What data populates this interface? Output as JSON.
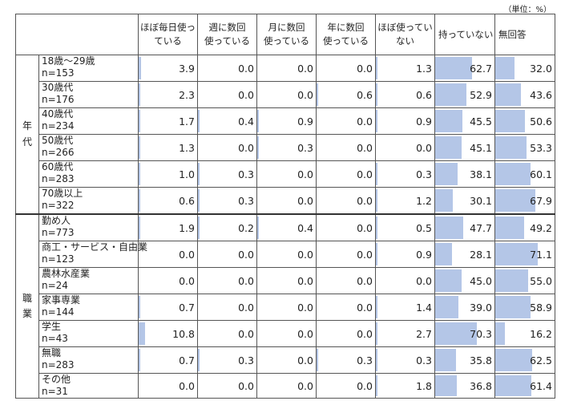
{
  "unit_label": "（単位：%）",
  "chart_data": {
    "type": "table",
    "columns": [
      "ほぼ毎日使っている",
      "週に数回使っている",
      "月に数回使っている",
      "年に数回使っている",
      "ほぼ使っていない",
      "持っていない",
      "無回答"
    ],
    "column_lines": [
      [
        "ほぼ毎日使っ",
        "ている"
      ],
      [
        "週に数回",
        "使っている"
      ],
      [
        "月に数回",
        "使っている"
      ],
      [
        "年に数回",
        "使っている"
      ],
      [
        "ほぼ使ってい",
        "ない"
      ],
      [
        "持っていない"
      ],
      [
        "無回答"
      ]
    ],
    "bar_max": 100,
    "groups": [
      {
        "label": "年代",
        "chars": [
          "年",
          "代"
        ],
        "rows": [
          {
            "label": "18歳～29歳",
            "n": "n=153",
            "values": [
              3.9,
              0.0,
              0.0,
              0.0,
              1.3,
              62.7,
              32.0
            ]
          },
          {
            "label": "30歳代",
            "n": "n=176",
            "values": [
              2.3,
              0.0,
              0.0,
              0.6,
              0.6,
              52.9,
              43.6
            ]
          },
          {
            "label": "40歳代",
            "n": "n=234",
            "values": [
              1.7,
              0.4,
              0.9,
              0.0,
              0.9,
              45.5,
              50.6
            ]
          },
          {
            "label": "50歳代",
            "n": "n=266",
            "values": [
              1.3,
              0.0,
              0.3,
              0.0,
              0.0,
              45.1,
              53.3
            ]
          },
          {
            "label": "60歳代",
            "n": "n=283",
            "values": [
              1.0,
              0.3,
              0.0,
              0.0,
              0.3,
              38.1,
              60.1
            ]
          },
          {
            "label": "70歳以上",
            "n": "n=322",
            "values": [
              0.6,
              0.3,
              0.0,
              0.0,
              1.2,
              30.1,
              67.9
            ]
          }
        ]
      },
      {
        "label": "職業",
        "chars": [
          "職",
          "業"
        ],
        "rows": [
          {
            "label": "勤め人",
            "n": "n=773",
            "values": [
              1.9,
              0.2,
              0.4,
              0.0,
              0.5,
              47.7,
              49.2
            ]
          },
          {
            "label": "商工・サービス・自由業",
            "n": "n=123",
            "values": [
              0.0,
              0.0,
              0.0,
              0.0,
              0.9,
              28.1,
              71.1
            ]
          },
          {
            "label": "農林水産業",
            "n": "n=24",
            "values": [
              0.0,
              0.0,
              0.0,
              0.0,
              0.0,
              45.0,
              55.0
            ]
          },
          {
            "label": "家事専業",
            "n": "n=144",
            "values": [
              0.7,
              0.0,
              0.0,
              0.0,
              1.4,
              39.0,
              58.9
            ]
          },
          {
            "label": "学生",
            "n": "n=43",
            "values": [
              10.8,
              0.0,
              0.0,
              0.0,
              2.7,
              70.3,
              16.2
            ]
          },
          {
            "label": "無職",
            "n": "n=283",
            "values": [
              0.7,
              0.3,
              0.0,
              0.3,
              0.3,
              35.8,
              62.5
            ]
          },
          {
            "label": "その他",
            "n": "n=31",
            "values": [
              0.0,
              0.0,
              0.0,
              0.0,
              1.8,
              36.8,
              61.4
            ]
          }
        ]
      }
    ]
  }
}
